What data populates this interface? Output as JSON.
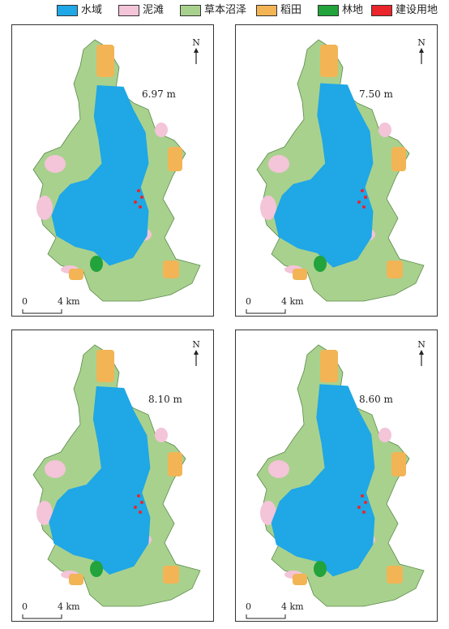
{
  "legend": {
    "items": [
      {
        "label": "水域",
        "color": "#1fa7e6"
      },
      {
        "label": "泥滩",
        "color": "#f4c4d8"
      },
      {
        "label": "草本沼泽",
        "color": "#a9d18e"
      },
      {
        "label": "稻田",
        "color": "#f2b455"
      },
      {
        "label": "林地",
        "color": "#22a33b"
      },
      {
        "label": "建设用地",
        "color": "#e8262b"
      }
    ]
  },
  "panels": [
    {
      "water_level": "6.97 m",
      "water_fraction": 0.62
    },
    {
      "water_level": "7.50 m",
      "water_fraction": 0.68
    },
    {
      "water_level": "8.10 m",
      "water_fraction": 0.74
    },
    {
      "water_level": "8.60 m",
      "water_fraction": 0.8
    }
  ],
  "north_label": "N",
  "scale": {
    "start": "0",
    "end": "4 km"
  }
}
